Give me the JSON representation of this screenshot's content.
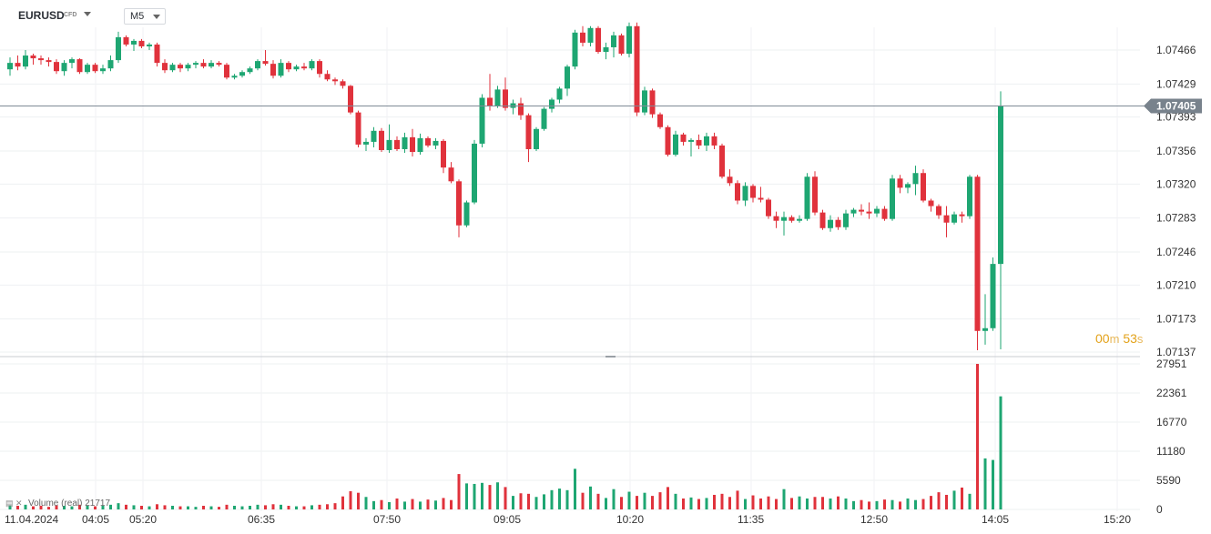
{
  "header": {
    "symbol": "EURUSD",
    "instrument_type": "CFD",
    "timeframe": "M5"
  },
  "timer": {
    "minutes": "00",
    "minutes_unit": "m",
    "seconds": "53",
    "seconds_unit": "s"
  },
  "volume_panel": {
    "label": "Volume (real) 21717"
  },
  "colors": {
    "up": "#1ea672",
    "down": "#e0323c",
    "price_line": "#7f8a96",
    "price_badge": "#78828c"
  },
  "chart_data": {
    "type": "candlestick",
    "current_price": 1.07405,
    "current_price_label": "1.07405",
    "price_axis": {
      "min": 1.07137,
      "max": 1.07466,
      "ticks": [
        "1.07466",
        "1.07429",
        "1.07393",
        "1.07356",
        "1.07320",
        "1.07283",
        "1.07246",
        "1.07210",
        "1.07173",
        "1.07137"
      ]
    },
    "volume_axis": {
      "min": 0,
      "max": 27951,
      "ticks": [
        "27951",
        "22361",
        "16770",
        "11180",
        "5590",
        "0"
      ]
    },
    "time_axis": {
      "labels": [
        "11.04.2024",
        "04:05",
        "05:20",
        "06:35",
        "07:50",
        "09:05",
        "10:20",
        "11:35",
        "12:50",
        "14:05",
        "15:20"
      ]
    },
    "candles": [
      [
        1.07445,
        1.07458,
        1.07438,
        1.07452,
        800
      ],
      [
        1.07452,
        1.0746,
        1.07444,
        1.07448,
        700
      ],
      [
        1.07448,
        1.07466,
        1.07445,
        1.0746,
        900
      ],
      [
        1.0746,
        1.07462,
        1.0745,
        1.07457,
        600
      ],
      [
        1.07457,
        1.0746,
        1.0745,
        1.07455,
        700
      ],
      [
        1.07455,
        1.07458,
        1.07448,
        1.07453,
        500
      ],
      [
        1.07453,
        1.07456,
        1.0744,
        1.07443,
        800
      ],
      [
        1.07443,
        1.07455,
        1.07438,
        1.07452,
        700
      ],
      [
        1.07452,
        1.07458,
        1.07446,
        1.07456,
        600
      ],
      [
        1.07456,
        1.07457,
        1.0744,
        1.07442,
        900
      ],
      [
        1.07442,
        1.07452,
        1.0744,
        1.0745,
        800
      ],
      [
        1.0745,
        1.07452,
        1.07441,
        1.07443,
        600
      ],
      [
        1.07443,
        1.0745,
        1.0744,
        1.07446,
        700
      ],
      [
        1.07446,
        1.0746,
        1.07443,
        1.07455,
        900
      ],
      [
        1.07455,
        1.07486,
        1.07452,
        1.0748,
        1200
      ],
      [
        1.0748,
        1.07482,
        1.0747,
        1.07472,
        900
      ],
      [
        1.07472,
        1.07478,
        1.07465,
        1.07476,
        800
      ],
      [
        1.07476,
        1.07478,
        1.07468,
        1.0747,
        700
      ],
      [
        1.0747,
        1.07474,
        1.07466,
        1.07472,
        600
      ],
      [
        1.07472,
        1.07474,
        1.07448,
        1.07452,
        1000
      ],
      [
        1.07452,
        1.07456,
        1.07441,
        1.07444,
        800
      ],
      [
        1.07444,
        1.07452,
        1.07442,
        1.0745,
        700
      ],
      [
        1.0745,
        1.07452,
        1.07442,
        1.07446,
        600
      ],
      [
        1.07446,
        1.07452,
        1.07443,
        1.0745,
        600
      ],
      [
        1.0745,
        1.07454,
        1.07446,
        1.07452,
        500
      ],
      [
        1.07452,
        1.07456,
        1.07446,
        1.07448,
        700
      ],
      [
        1.07448,
        1.07455,
        1.07446,
        1.07452,
        600
      ],
      [
        1.07452,
        1.07454,
        1.07448,
        1.0745,
        500
      ],
      [
        1.0745,
        1.07452,
        1.07434,
        1.07436,
        900
      ],
      [
        1.07436,
        1.0744,
        1.07434,
        1.07438,
        700
      ],
      [
        1.07438,
        1.07444,
        1.07436,
        1.07442,
        600
      ],
      [
        1.07442,
        1.07448,
        1.0744,
        1.07446,
        700
      ],
      [
        1.07446,
        1.07456,
        1.07444,
        1.07454,
        900
      ],
      [
        1.07454,
        1.07466,
        1.07449,
        1.07451,
        800
      ],
      [
        1.07451,
        1.07455,
        1.07435,
        1.07438,
        1000
      ],
      [
        1.07438,
        1.07456,
        1.07436,
        1.07452,
        900
      ],
      [
        1.07452,
        1.07454,
        1.07442,
        1.07445,
        700
      ],
      [
        1.07445,
        1.0745,
        1.07443,
        1.07448,
        600
      ],
      [
        1.07448,
        1.07452,
        1.07444,
        1.07446,
        600
      ],
      [
        1.07446,
        1.07456,
        1.07444,
        1.07454,
        800
      ],
      [
        1.07454,
        1.07456,
        1.07436,
        1.0744,
        900
      ],
      [
        1.0744,
        1.07444,
        1.07432,
        1.07434,
        1000
      ],
      [
        1.07434,
        1.07436,
        1.07428,
        1.07432,
        1200
      ],
      [
        1.07432,
        1.07434,
        1.07424,
        1.07427,
        2500
      ],
      [
        1.07427,
        1.07428,
        1.07396,
        1.07398,
        3500
      ],
      [
        1.07398,
        1.074,
        1.0736,
        1.07363,
        3200
      ],
      [
        1.07363,
        1.0737,
        1.07356,
        1.07366,
        2400
      ],
      [
        1.07366,
        1.07382,
        1.0736,
        1.07378,
        1600
      ],
      [
        1.07378,
        1.07381,
        1.07355,
        1.07357,
        1800
      ],
      [
        1.07357,
        1.07385,
        1.07354,
        1.07368,
        1400
      ],
      [
        1.07368,
        1.07372,
        1.07356,
        1.07358,
        2100
      ],
      [
        1.07358,
        1.07376,
        1.07354,
        1.07371,
        1500
      ],
      [
        1.07371,
        1.0738,
        1.0735,
        1.07355,
        2000
      ],
      [
        1.07355,
        1.07375,
        1.07352,
        1.0737,
        1500
      ],
      [
        1.0737,
        1.07372,
        1.0736,
        1.07362,
        1900
      ],
      [
        1.07362,
        1.0737,
        1.07358,
        1.07367,
        1700
      ],
      [
        1.07367,
        1.07369,
        1.07332,
        1.07338,
        2200
      ],
      [
        1.07338,
        1.07344,
        1.07321,
        1.07323,
        1800
      ],
      [
        1.07323,
        1.07325,
        1.07262,
        1.07275,
        6800
      ],
      [
        1.07275,
        1.07302,
        1.07273,
        1.073,
        5000
      ],
      [
        1.073,
        1.07368,
        1.07298,
        1.07364,
        4900
      ],
      [
        1.07364,
        1.07418,
        1.0736,
        1.07414,
        5100
      ],
      [
        1.07414,
        1.0744,
        1.074,
        1.07405,
        4700
      ],
      [
        1.07405,
        1.07427,
        1.07403,
        1.07423,
        5200
      ],
      [
        1.07423,
        1.07436,
        1.074,
        1.07403,
        4300
      ],
      [
        1.07403,
        1.07412,
        1.07396,
        1.07408,
        2600
      ],
      [
        1.07408,
        1.07414,
        1.0739,
        1.07395,
        3100
      ],
      [
        1.07395,
        1.07397,
        1.07344,
        1.07358,
        3000
      ],
      [
        1.07358,
        1.07382,
        1.07356,
        1.0738,
        2400
      ],
      [
        1.0738,
        1.07404,
        1.07378,
        1.07402,
        2900
      ],
      [
        1.07402,
        1.07414,
        1.07398,
        1.07412,
        3700
      ],
      [
        1.07412,
        1.07426,
        1.07408,
        1.07424,
        4000
      ],
      [
        1.07424,
        1.0745,
        1.07416,
        1.07448,
        3700
      ],
      [
        1.07448,
        1.07488,
        1.07445,
        1.07485,
        7800
      ],
      [
        1.07485,
        1.07492,
        1.0747,
        1.07474,
        3200
      ],
      [
        1.07474,
        1.07492,
        1.0747,
        1.0749,
        4400
      ],
      [
        1.0749,
        1.07492,
        1.07462,
        1.07464,
        3000
      ],
      [
        1.07464,
        1.07474,
        1.07456,
        1.07469,
        2200
      ],
      [
        1.07469,
        1.07486,
        1.07458,
        1.07482,
        3900
      ],
      [
        1.07482,
        1.07484,
        1.0746,
        1.07462,
        2400
      ],
      [
        1.07462,
        1.07496,
        1.07458,
        1.07492,
        3400
      ],
      [
        1.07492,
        1.07496,
        1.07394,
        1.07398,
        2600
      ],
      [
        1.07398,
        1.07426,
        1.07395,
        1.07422,
        3200
      ],
      [
        1.07422,
        1.07424,
        1.07392,
        1.07396,
        2600
      ],
      [
        1.07396,
        1.07398,
        1.0738,
        1.07382,
        3300
      ],
      [
        1.07382,
        1.07384,
        1.0735,
        1.07352,
        4300
      ],
      [
        1.07352,
        1.07378,
        1.0735,
        1.07374,
        3000
      ],
      [
        1.07374,
        1.07376,
        1.07362,
        1.07366,
        2100
      ],
      [
        1.07366,
        1.0737,
        1.0735,
        1.07368,
        2300
      ],
      [
        1.07368,
        1.07374,
        1.07358,
        1.07362,
        2000
      ],
      [
        1.07362,
        1.07376,
        1.07356,
        1.07372,
        2200
      ],
      [
        1.07372,
        1.07376,
        1.07358,
        1.07362,
        2800
      ],
      [
        1.07362,
        1.07364,
        1.07326,
        1.07328,
        3000
      ],
      [
        1.07328,
        1.07336,
        1.07318,
        1.07321,
        2400
      ],
      [
        1.07321,
        1.07324,
        1.07298,
        1.07302,
        3600
      ],
      [
        1.07302,
        1.07322,
        1.07296,
        1.07318,
        2000
      ],
      [
        1.07318,
        1.0732,
        1.073,
        1.07305,
        2700
      ],
      [
        1.07305,
        1.07317,
        1.073,
        1.07303,
        2100
      ],
      [
        1.07303,
        1.07305,
        1.07282,
        1.07285,
        2500
      ],
      [
        1.07285,
        1.0729,
        1.07272,
        1.0728,
        2000
      ],
      [
        1.0728,
        1.0729,
        1.07264,
        1.07284,
        3900
      ],
      [
        1.07284,
        1.07286,
        1.07278,
        1.0728,
        2200
      ],
      [
        1.0728,
        1.07286,
        1.07278,
        1.07282,
        2500
      ],
      [
        1.07282,
        1.07332,
        1.0728,
        1.07328,
        2100
      ],
      [
        1.07328,
        1.07334,
        1.07286,
        1.07289,
        2400
      ],
      [
        1.07289,
        1.07292,
        1.0727,
        1.07272,
        2400
      ],
      [
        1.07272,
        1.07286,
        1.07268,
        1.07281,
        2100
      ],
      [
        1.07281,
        1.07284,
        1.0727,
        1.07273,
        2500
      ],
      [
        1.07273,
        1.07292,
        1.0727,
        1.07288,
        2100
      ],
      [
        1.07288,
        1.07294,
        1.07284,
        1.07292,
        1600
      ],
      [
        1.07292,
        1.07298,
        1.07286,
        1.0729,
        1800
      ],
      [
        1.0729,
        1.073,
        1.07282,
        1.07288,
        1500
      ],
      [
        1.07288,
        1.07296,
        1.07284,
        1.07293,
        1600
      ],
      [
        1.07293,
        1.07296,
        1.0728,
        1.07282,
        1900
      ],
      [
        1.07282,
        1.0733,
        1.0728,
        1.07326,
        1800
      ],
      [
        1.07326,
        1.0733,
        1.0731,
        1.07316,
        1500
      ],
      [
        1.07316,
        1.07322,
        1.0731,
        1.0732,
        2100
      ],
      [
        1.0732,
        1.0734,
        1.07308,
        1.07332,
        1800
      ],
      [
        1.07332,
        1.07336,
        1.073,
        1.07302,
        2000
      ],
      [
        1.07302,
        1.07304,
        1.0729,
        1.07296,
        2600
      ],
      [
        1.07296,
        1.07298,
        1.07282,
        1.07286,
        3300
      ],
      [
        1.07286,
        1.07296,
        1.07262,
        1.07278,
        2800
      ],
      [
        1.07278,
        1.0729,
        1.07276,
        1.07287,
        3600
      ],
      [
        1.07287,
        1.0729,
        1.07278,
        1.07285,
        4200
      ],
      [
        1.07285,
        1.0733,
        1.07282,
        1.07328,
        3000
      ],
      [
        1.07328,
        1.0733,
        1.07139,
        1.0716,
        27951
      ],
      [
        1.0716,
        1.072,
        1.07145,
        1.07163,
        9800
      ],
      [
        1.07163,
        1.0724,
        1.0716,
        1.07233,
        9500
      ],
      [
        1.07233,
        1.07421,
        1.0714,
        1.07405,
        21717
      ]
    ]
  }
}
